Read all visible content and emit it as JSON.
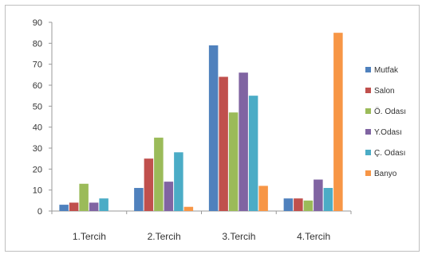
{
  "chart_data": {
    "type": "bar",
    "categories": [
      "1.Tercih",
      "2.Tercih",
      "3.Tercih",
      "4.Tercih"
    ],
    "series": [
      {
        "name": "Mutfak",
        "color": "#4f81bd",
        "values": [
          3,
          11,
          79,
          6
        ]
      },
      {
        "name": "Salon",
        "color": "#c0504d",
        "values": [
          4,
          25,
          64,
          6
        ]
      },
      {
        "name": "Ö. Odası",
        "color": "#9bbb59",
        "values": [
          13,
          35,
          47,
          5
        ]
      },
      {
        "name": "Y.Odası",
        "color": "#8064a2",
        "values": [
          4,
          14,
          66,
          15
        ]
      },
      {
        "name": "Ç. Odası",
        "color": "#4bacc6",
        "values": [
          6,
          28,
          55,
          11
        ]
      },
      {
        "name": "Banyo",
        "color": "#f79646",
        "values": [
          0,
          2,
          12,
          85
        ]
      }
    ],
    "yticks": [
      0,
      10,
      20,
      30,
      40,
      50,
      60,
      70,
      80,
      90
    ],
    "ylim": [
      0,
      90
    ],
    "grid": false,
    "legend_position": "right",
    "title": "",
    "xlabel": "",
    "ylabel": ""
  }
}
